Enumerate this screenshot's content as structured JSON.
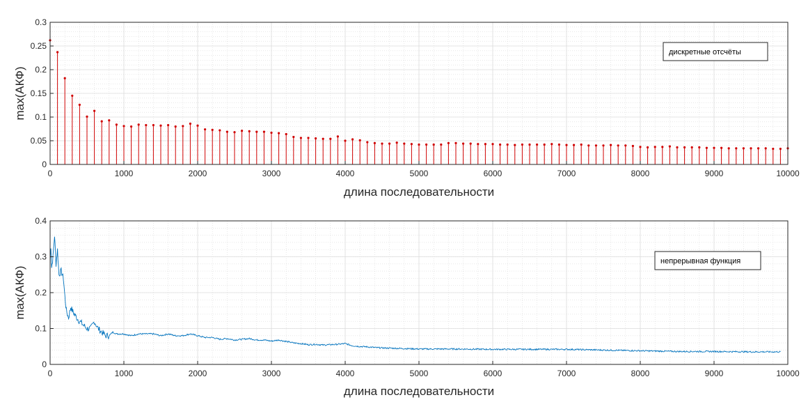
{
  "chart_data": [
    {
      "type": "stem",
      "xlabel": "длина последовательности",
      "ylabel": "max(АКФ)",
      "xlim": [
        0,
        10000
      ],
      "ylim": [
        0,
        0.3
      ],
      "xticks": [
        "0",
        "1000",
        "2000",
        "3000",
        "4000",
        "5000",
        "6000",
        "7000",
        "8000",
        "9000",
        "10000"
      ],
      "yticks": [
        "0",
        "0.05",
        "0.1",
        "0.15",
        "0.2",
        "0.25",
        "0.3"
      ],
      "grid": true,
      "minor_grid": true,
      "legend_position": "top-right",
      "color": "#d00000",
      "series": [
        {
          "name": "дискретные отсчёты",
          "x": [
            0,
            100,
            200,
            300,
            400,
            500,
            600,
            700,
            800,
            900,
            1000,
            1100,
            1200,
            1300,
            1400,
            1500,
            1600,
            1700,
            1800,
            1900,
            2000,
            2100,
            2200,
            2300,
            2400,
            2500,
            2600,
            2700,
            2800,
            2900,
            3000,
            3100,
            3200,
            3300,
            3400,
            3500,
            3600,
            3700,
            3800,
            3900,
            4000,
            4100,
            4200,
            4300,
            4400,
            4500,
            4600,
            4700,
            4800,
            4900,
            5000,
            5100,
            5200,
            5300,
            5400,
            5500,
            5600,
            5700,
            5800,
            5900,
            6000,
            6100,
            6200,
            6300,
            6400,
            6500,
            6600,
            6700,
            6800,
            6900,
            7000,
            7100,
            7200,
            7300,
            7400,
            7500,
            7600,
            7700,
            7800,
            7900,
            8000,
            8100,
            8200,
            8300,
            8400,
            8500,
            8600,
            8700,
            8800,
            8900,
            9000,
            9100,
            9200,
            9300,
            9400,
            9500,
            9600,
            9700,
            9800,
            9900,
            10000
          ],
          "values": [
            0.262,
            0.237,
            0.182,
            0.145,
            0.126,
            0.101,
            0.113,
            0.091,
            0.093,
            0.084,
            0.081,
            0.08,
            0.084,
            0.083,
            0.083,
            0.082,
            0.083,
            0.08,
            0.081,
            0.086,
            0.082,
            0.074,
            0.073,
            0.072,
            0.069,
            0.068,
            0.071,
            0.07,
            0.069,
            0.069,
            0.067,
            0.066,
            0.064,
            0.058,
            0.056,
            0.056,
            0.055,
            0.054,
            0.054,
            0.059,
            0.05,
            0.053,
            0.051,
            0.047,
            0.045,
            0.044,
            0.044,
            0.046,
            0.044,
            0.043,
            0.042,
            0.042,
            0.042,
            0.042,
            0.045,
            0.045,
            0.044,
            0.044,
            0.043,
            0.043,
            0.043,
            0.042,
            0.042,
            0.041,
            0.042,
            0.042,
            0.042,
            0.042,
            0.043,
            0.042,
            0.041,
            0.041,
            0.042,
            0.04,
            0.04,
            0.04,
            0.041,
            0.04,
            0.04,
            0.039,
            0.037,
            0.036,
            0.037,
            0.037,
            0.038,
            0.036,
            0.036,
            0.036,
            0.036,
            0.035,
            0.035,
            0.035,
            0.034,
            0.034,
            0.034,
            0.034,
            0.034,
            0.034,
            0.033,
            0.033,
            0.034
          ]
        }
      ]
    },
    {
      "type": "line",
      "xlabel": "длина последовательности",
      "ylabel": "max(АКФ)",
      "xlim": [
        0,
        10000
      ],
      "ylim": [
        0,
        0.4
      ],
      "xticks": [
        "0",
        "1000",
        "2000",
        "3000",
        "4000",
        "5000",
        "6000",
        "7000",
        "8000",
        "9000",
        "10000"
      ],
      "yticks": [
        "0",
        "0.1",
        "0.2",
        "0.3",
        "0.4"
      ],
      "grid": true,
      "minor_grid": true,
      "legend_position": "top-right",
      "color": "#0072bd",
      "series": [
        {
          "name": "непрерывная функция",
          "x": [
            0,
            10,
            20,
            40,
            60,
            80,
            100,
            120,
            150,
            180,
            200,
            220,
            250,
            280,
            300,
            330,
            360,
            400,
            450,
            500,
            550,
            600,
            650,
            700,
            750,
            800,
            850,
            900,
            1000,
            1100,
            1200,
            1300,
            1400,
            1500,
            1600,
            1700,
            1800,
            1900,
            2000,
            2100,
            2200,
            2300,
            2400,
            2500,
            2600,
            2700,
            2800,
            2900,
            3000,
            3100,
            3200,
            3300,
            3400,
            3500,
            3600,
            3700,
            3800,
            3900,
            4000,
            4100,
            4200,
            4300,
            4400,
            4500,
            5000,
            5500,
            6000,
            6500,
            7000,
            7500,
            8000,
            8500,
            9000,
            9500,
            9900
          ],
          "values": [
            0.29,
            0.33,
            0.27,
            0.3,
            0.36,
            0.28,
            0.32,
            0.25,
            0.26,
            0.24,
            0.19,
            0.15,
            0.13,
            0.16,
            0.15,
            0.14,
            0.13,
            0.12,
            0.11,
            0.1,
            0.1,
            0.12,
            0.1,
            0.09,
            0.08,
            0.08,
            0.09,
            0.085,
            0.085,
            0.08,
            0.085,
            0.085,
            0.085,
            0.08,
            0.085,
            0.08,
            0.08,
            0.085,
            0.08,
            0.075,
            0.075,
            0.07,
            0.072,
            0.068,
            0.07,
            0.072,
            0.068,
            0.068,
            0.065,
            0.068,
            0.064,
            0.06,
            0.058,
            0.055,
            0.056,
            0.054,
            0.055,
            0.056,
            0.058,
            0.052,
            0.05,
            0.049,
            0.047,
            0.046,
            0.043,
            0.043,
            0.042,
            0.042,
            0.042,
            0.04,
            0.038,
            0.036,
            0.036,
            0.035,
            0.035
          ]
        }
      ]
    }
  ]
}
